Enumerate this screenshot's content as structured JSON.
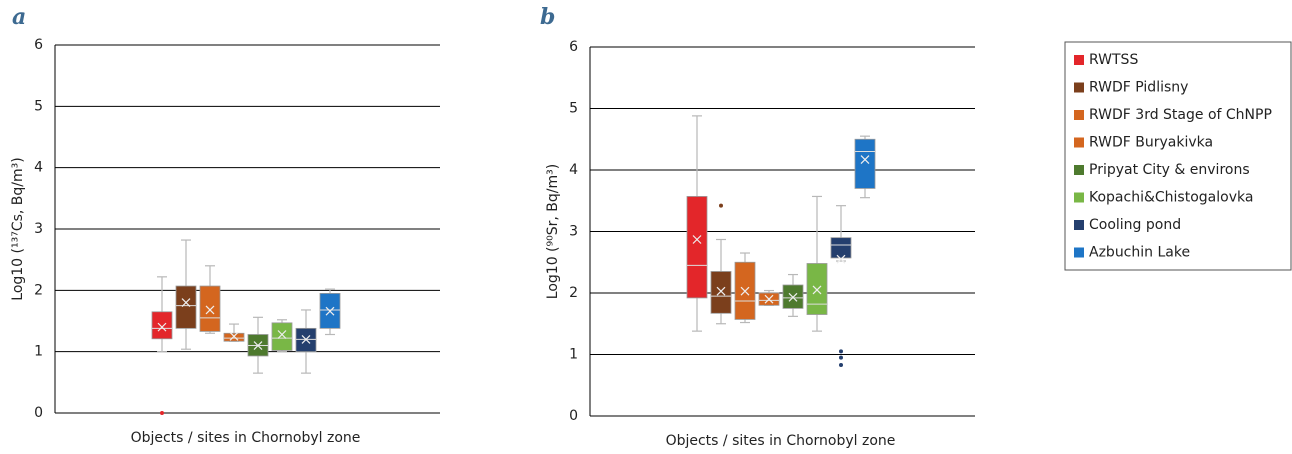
{
  "chart_data": [
    {
      "type": "box",
      "label": "a",
      "ylabel": "Log10 (¹³⁷Cs, Bq/m³)",
      "xlabel": "Objects / sites in Chornobyl zone",
      "ylim": [
        0,
        6
      ],
      "yticks": [
        0,
        1,
        2,
        3,
        4,
        5,
        6
      ],
      "grid": true,
      "series": [
        {
          "color": "#e3262a",
          "min": 1.0,
          "q1": 1.21,
          "median": 1.38,
          "q3": 1.65,
          "max": 2.22,
          "mean": 1.4,
          "outliers": [
            0.0
          ]
        },
        {
          "color": "#7b3f1c",
          "min": 1.04,
          "q1": 1.38,
          "median": 1.75,
          "q3": 2.07,
          "max": 2.82,
          "mean": 1.8,
          "outliers": []
        },
        {
          "color": "#d4661f",
          "min": 1.3,
          "q1": 1.33,
          "median": 1.55,
          "q3": 2.07,
          "max": 2.4,
          "mean": 1.68,
          "outliers": []
        },
        {
          "color": "#d4661f",
          "min": 1.17,
          "q1": 1.17,
          "median": 1.22,
          "q3": 1.3,
          "max": 1.45,
          "mean": 1.25,
          "outliers": []
        },
        {
          "color": "#4e7a2e",
          "min": 0.65,
          "q1": 0.93,
          "median": 1.1,
          "q3": 1.28,
          "max": 1.56,
          "mean": 1.1,
          "outliers": []
        },
        {
          "color": "#79b746",
          "min": 1.0,
          "q1": 1.02,
          "median": 1.22,
          "q3": 1.47,
          "max": 1.52,
          "mean": 1.28,
          "outliers": []
        },
        {
          "color": "#243f6e",
          "min": 0.65,
          "q1": 1.0,
          "median": 1.2,
          "q3": 1.38,
          "max": 1.68,
          "mean": 1.2,
          "outliers": []
        },
        {
          "color": "#1e75c6",
          "min": 1.28,
          "q1": 1.38,
          "median": 1.68,
          "q3": 1.95,
          "max": 2.02,
          "mean": 1.66,
          "outliers": []
        }
      ]
    },
    {
      "type": "box",
      "label": "b",
      "ylabel": "Log10 (⁹⁰Sr, Bq/m³)",
      "xlabel": "Objects / sites in Chornobyl zone",
      "ylim": [
        0,
        6
      ],
      "yticks": [
        0,
        1,
        2,
        3,
        4,
        5,
        6
      ],
      "grid": true,
      "legend": "right",
      "series": [
        {
          "name": "RWTSS",
          "color": "#e3262a",
          "min": 1.38,
          "q1": 1.92,
          "median": 2.45,
          "q3": 3.57,
          "max": 4.88,
          "mean": 2.87,
          "outliers": []
        },
        {
          "name": "RWDF Pidlisny",
          "color": "#7b3f1c",
          "min": 1.5,
          "q1": 1.67,
          "median": 1.95,
          "q3": 2.35,
          "max": 2.87,
          "mean": 2.03,
          "outliers": [
            3.42
          ]
        },
        {
          "name": "RWDF 3rd Stage of ChNPP",
          "color": "#d4661f",
          "min": 1.52,
          "q1": 1.57,
          "median": 1.87,
          "q3": 2.5,
          "max": 2.65,
          "mean": 2.03,
          "outliers": []
        },
        {
          "name": "RWDF Buryakivka",
          "color": "#d4661f",
          "min": 1.8,
          "q1": 1.8,
          "median": 1.88,
          "q3": 2.0,
          "max": 2.04,
          "mean": 1.9,
          "outliers": []
        },
        {
          "name": "Pripyat City & environs",
          "color": "#4e7a2e",
          "min": 1.62,
          "q1": 1.75,
          "median": 1.92,
          "q3": 2.13,
          "max": 2.3,
          "mean": 1.93,
          "outliers": []
        },
        {
          "name": "Kopachi&Chistogalovka",
          "color": "#79b746",
          "min": 1.38,
          "q1": 1.65,
          "median": 1.82,
          "q3": 2.48,
          "max": 3.57,
          "mean": 2.05,
          "outliers": []
        },
        {
          "name": "Cooling pond",
          "color": "#243f6e",
          "min": 2.52,
          "q1": 2.57,
          "median": 2.78,
          "q3": 2.9,
          "max": 3.42,
          "mean": 2.55,
          "outliers": [
            1.05,
            0.95,
            0.83
          ]
        },
        {
          "name": "Azbuchin Lake",
          "color": "#1e75c6",
          "min": 3.55,
          "q1": 3.7,
          "median": 4.3,
          "q3": 4.5,
          "max": 4.55,
          "mean": 4.17,
          "outliers": []
        }
      ]
    }
  ]
}
